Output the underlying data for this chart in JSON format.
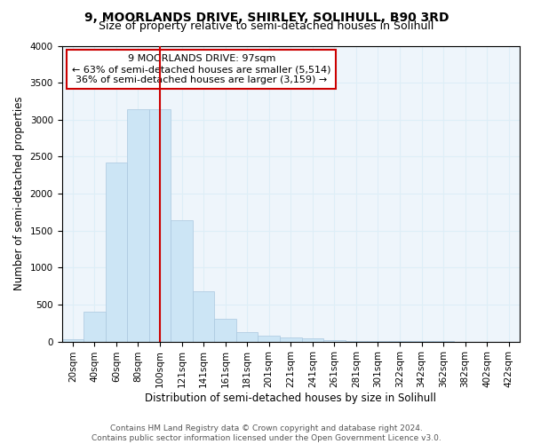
{
  "title": "9, MOORLANDS DRIVE, SHIRLEY, SOLIHULL, B90 3RD",
  "subtitle": "Size of property relative to semi-detached houses in Solihull",
  "xlabel": "Distribution of semi-detached houses by size in Solihull",
  "ylabel": "Number of semi-detached properties",
  "bar_labels": [
    "20sqm",
    "40sqm",
    "60sqm",
    "80sqm",
    "100sqm",
    "121sqm",
    "141sqm",
    "161sqm",
    "181sqm",
    "201sqm",
    "221sqm",
    "241sqm",
    "261sqm",
    "281sqm",
    "301sqm",
    "322sqm",
    "342sqm",
    "362sqm",
    "382sqm",
    "402sqm",
    "422sqm"
  ],
  "bar_values": [
    30,
    400,
    2420,
    3140,
    3140,
    1640,
    680,
    305,
    130,
    75,
    55,
    45,
    20,
    10,
    5,
    3,
    2,
    2,
    1,
    1,
    1
  ],
  "bar_color": "#cce5f5",
  "bar_edgecolor": "#aac8e0",
  "property_sqm": 97,
  "property_label": "9 MOORLANDS DRIVE: 97sqm",
  "pct_smaller": 63,
  "pct_smaller_n": "5,514",
  "pct_larger": 36,
  "pct_larger_n": "3,159",
  "vline_color": "#cc0000",
  "annotation_box_edgecolor": "#cc0000",
  "ylim": [
    0,
    4000
  ],
  "yticks": [
    0,
    500,
    1000,
    1500,
    2000,
    2500,
    3000,
    3500,
    4000
  ],
  "grid_color": "#ddeef7",
  "footer_line1": "Contains HM Land Registry data © Crown copyright and database right 2024.",
  "footer_line2": "Contains public sector information licensed under the Open Government Licence v3.0.",
  "title_fontsize": 10,
  "subtitle_fontsize": 9,
  "axis_label_fontsize": 8.5,
  "tick_fontsize": 7.5,
  "annotation_fontsize": 8,
  "footer_fontsize": 6.5
}
